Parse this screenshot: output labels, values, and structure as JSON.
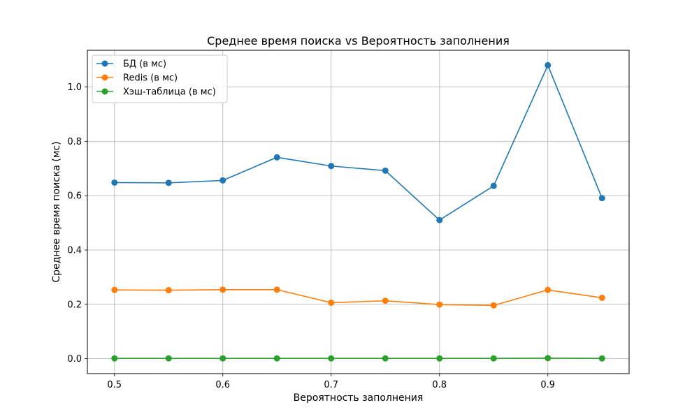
{
  "chart_data": {
    "type": "line",
    "title": "Среднее время поиска vs Вероятность заполнения",
    "xlabel": "Вероятность заполнения",
    "ylabel": "Среднее время поиска (мс)",
    "x": [
      0.5,
      0.55,
      0.6,
      0.65,
      0.7,
      0.75,
      0.8,
      0.85,
      0.9,
      0.95
    ],
    "xlim": [
      0.475,
      0.975
    ],
    "ylim": [
      -0.055,
      1.135
    ],
    "xticks": [
      "0.5",
      "0.6",
      "0.7",
      "0.8",
      "0.9"
    ],
    "yticks": [
      "0.0",
      "0.2",
      "0.4",
      "0.6",
      "0.8",
      "1.0"
    ],
    "grid": true,
    "legend_position": "top-left",
    "series": [
      {
        "name": "БД (в мс)",
        "color": "#1f77b4",
        "marker": "circle",
        "values": [
          0.648,
          0.647,
          0.656,
          0.741,
          0.709,
          0.692,
          0.51,
          0.636,
          1.08,
          0.591
        ]
      },
      {
        "name": "Redis (в мс)",
        "color": "#ff7f0e",
        "marker": "circle",
        "values": [
          0.253,
          0.252,
          0.254,
          0.254,
          0.206,
          0.213,
          0.199,
          0.196,
          0.253,
          0.224
        ]
      },
      {
        "name": "Хэш-таблица (в мс)",
        "color": "#2ca02c",
        "marker": "circle",
        "values": [
          0.001,
          0.001,
          0.001,
          0.001,
          0.001,
          0.001,
          0.001,
          0.001,
          0.002,
          0.001
        ]
      }
    ]
  }
}
